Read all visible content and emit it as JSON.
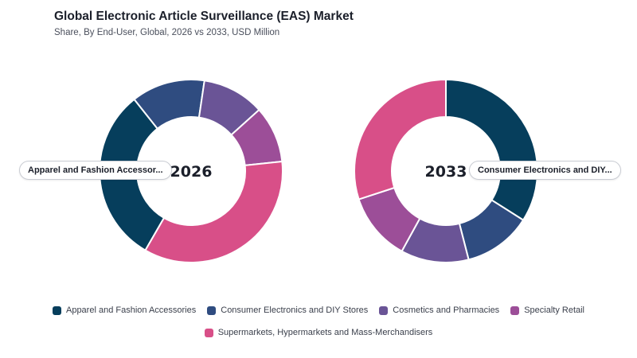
{
  "header": {
    "title": "Global Electronic Article Surveillance (EAS) Market",
    "subtitle": "Share, By End-User, Global, 2026 vs 2033, USD Million"
  },
  "tooltips": {
    "left": "Apparel and Fashion Accessor...",
    "right": "Consumer Electronics and DIY..."
  },
  "colors": {
    "Apparel and Fashion Accessories": "#063e5c",
    "Consumer Electronics and DIY Stores": "#2f4c80",
    "Cosmetics and Pharmacies": "#6a5496",
    "Specialty Retail": "#9c4e98",
    "Supermarkets, Hypermarkets and Mass-Merchandisers": "#d84f88"
  },
  "chart_data": [
    {
      "type": "pie",
      "donut": true,
      "center_label": "2026",
      "categories": [
        "Apparel and Fashion Accessories",
        "Consumer Electronics and DIY Stores",
        "Cosmetics and Pharmacies",
        "Specialty Retail",
        "Supermarkets, Hypermarkets and Mass-Merchandisers"
      ],
      "values": [
        31,
        13,
        11,
        10,
        35
      ]
    },
    {
      "type": "pie",
      "donut": true,
      "center_label": "2033",
      "categories": [
        "Apparel and Fashion Accessories",
        "Consumer Electronics and DIY Stores",
        "Cosmetics and Pharmacies",
        "Specialty Retail",
        "Supermarkets, Hypermarkets and Mass-Merchandisers"
      ],
      "values": [
        34,
        12,
        12,
        12,
        30
      ]
    }
  ],
  "legend": {
    "items": [
      "Apparel and Fashion Accessories",
      "Consumer Electronics and DIY Stores",
      "Cosmetics and Pharmacies",
      "Specialty Retail",
      "Supermarkets, Hypermarkets and Mass-Merchandisers"
    ]
  }
}
